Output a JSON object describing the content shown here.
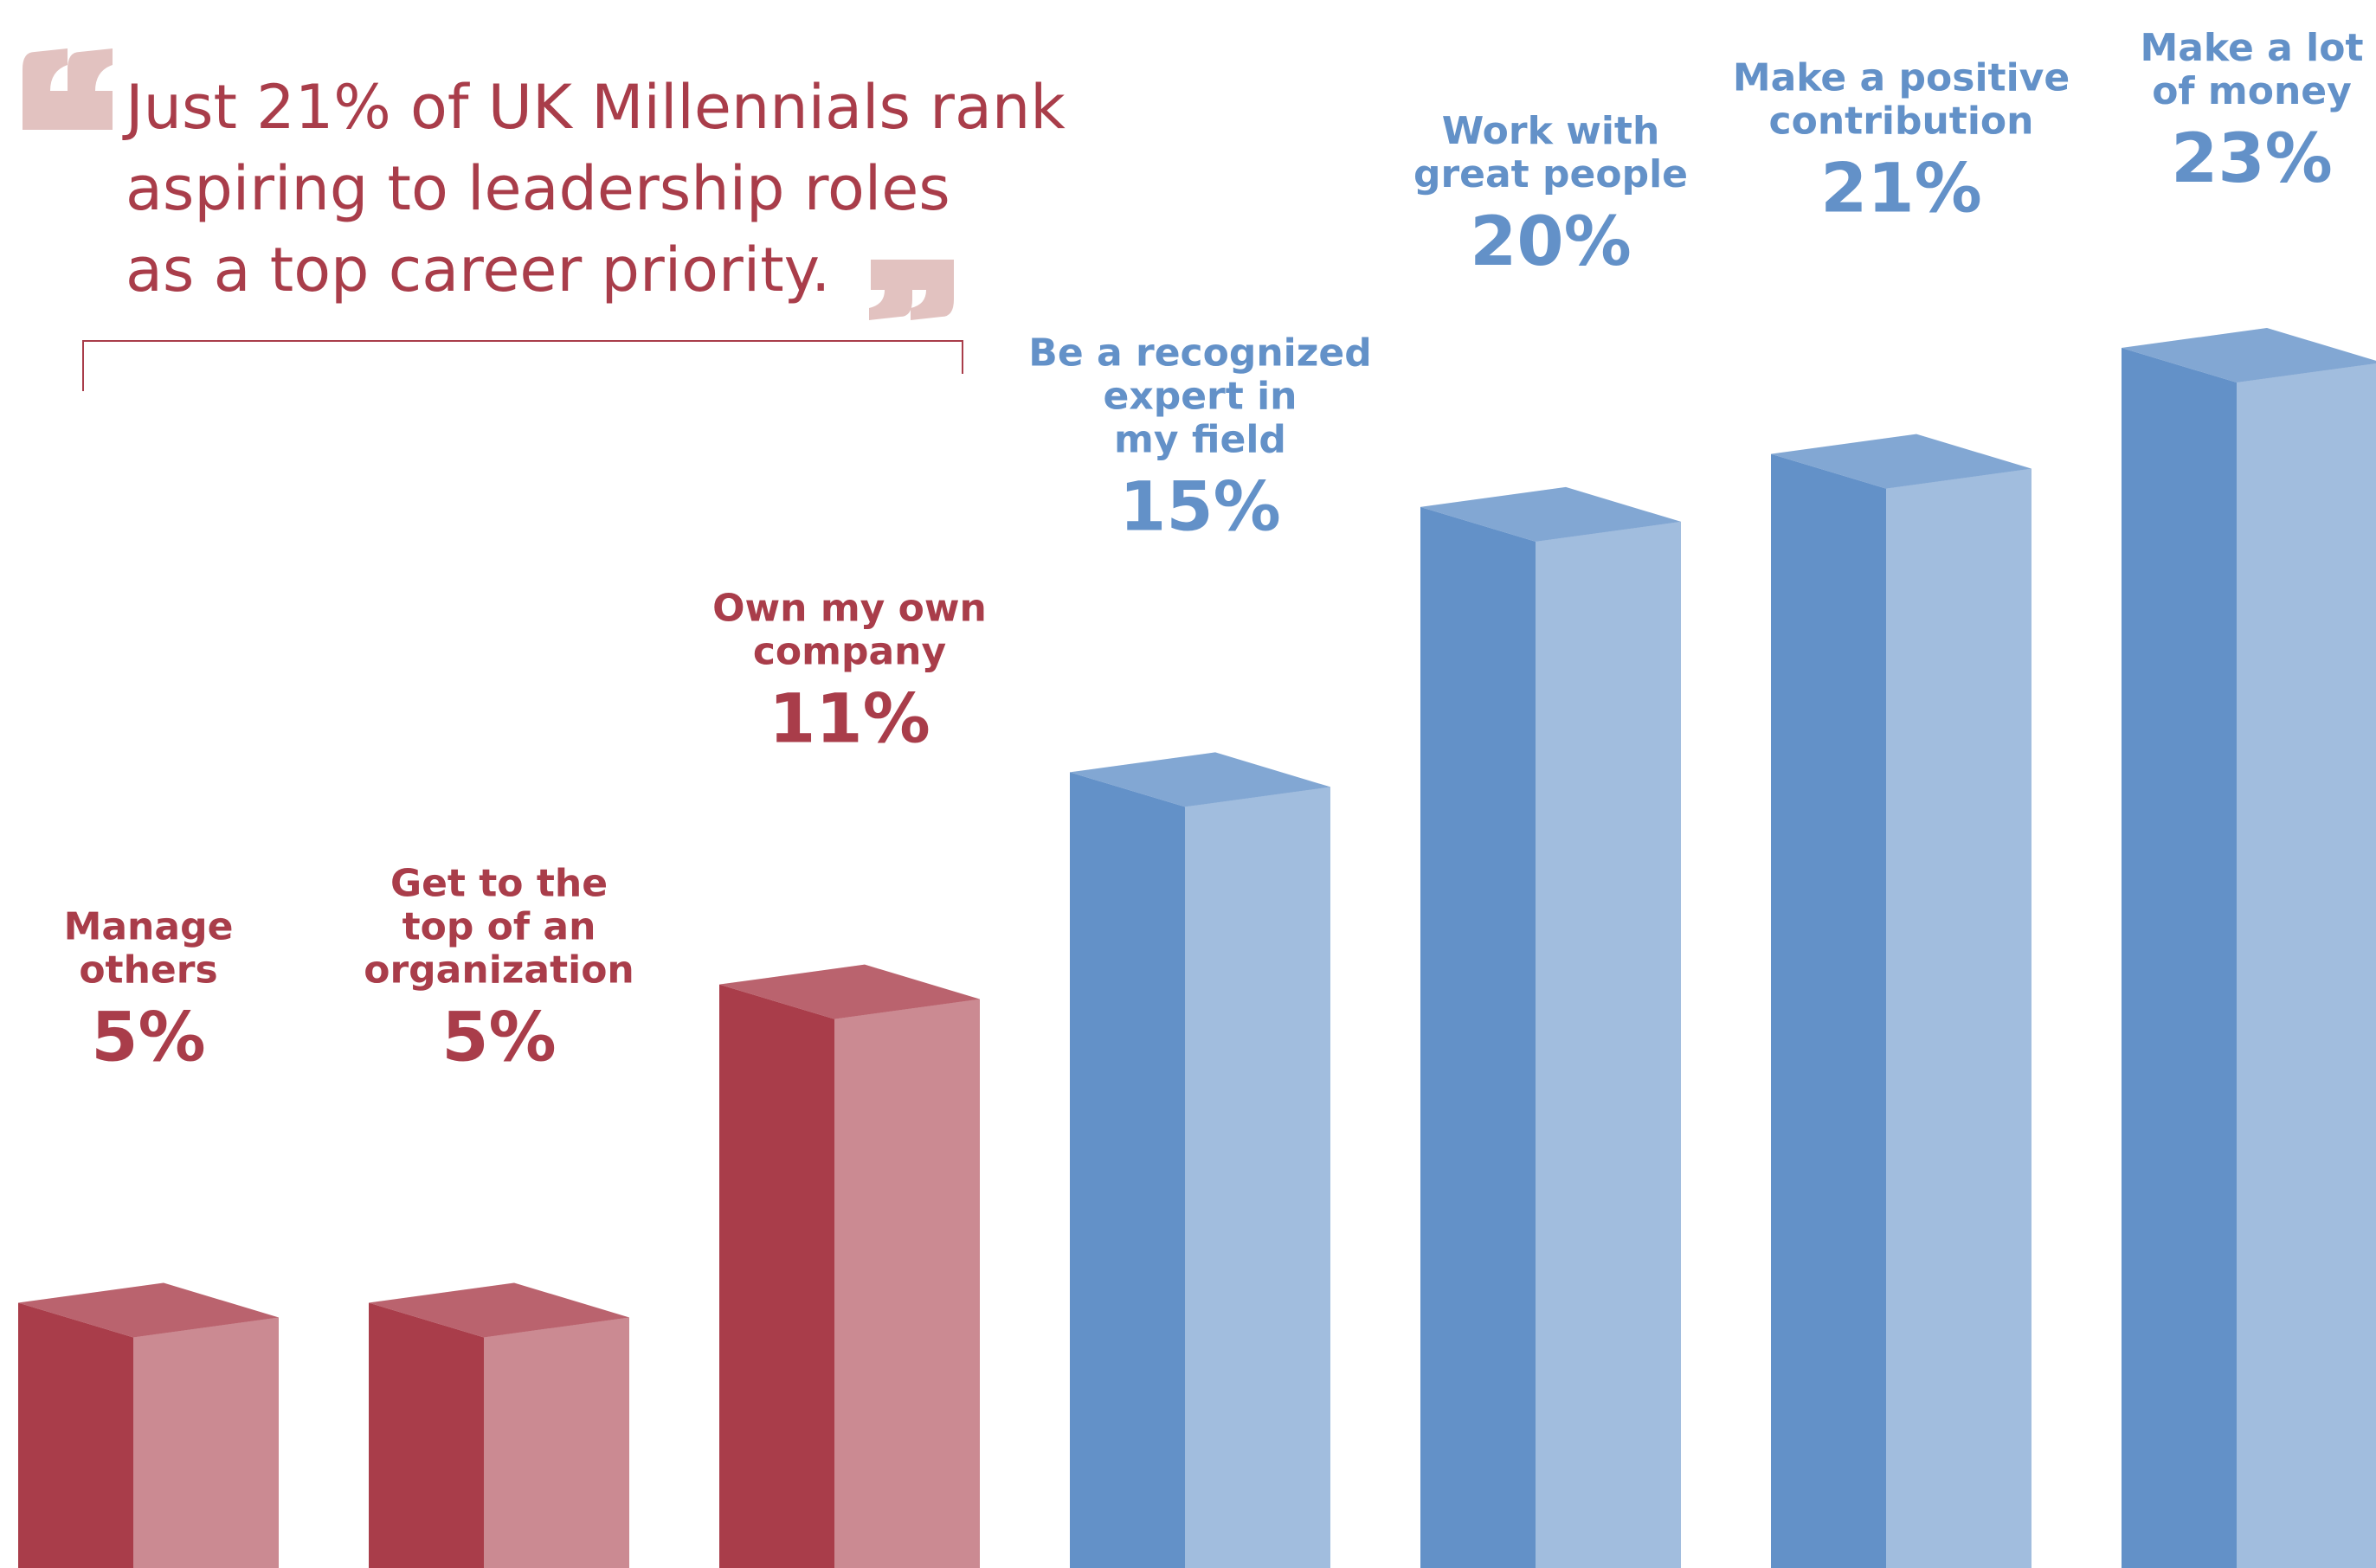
{
  "chart_data": {
    "type": "bar3d",
    "title_lines": [
      "Just 21% of UK Millennials rank",
      "aspiring to leadership roles",
      "as a top career priority."
    ],
    "categories": [
      [
        "Manage",
        "others"
      ],
      [
        "Get to the",
        "top of an",
        "organization"
      ],
      [
        "Own my own",
        "company"
      ],
      [
        "Be a recognized",
        "expert in",
        "my field"
      ],
      [
        "Work with",
        "great people"
      ],
      [
        "Make a positive",
        "contribution"
      ],
      [
        "Make a lot",
        "of money"
      ]
    ],
    "values": [
      5,
      5,
      11,
      15,
      20,
      21,
      23
    ],
    "value_labels": [
      "5%",
      "5%",
      "11%",
      "15%",
      "20%",
      "21%",
      "23%"
    ],
    "colors": [
      "#a93d4a",
      "#a93d4a",
      "#a93d4a",
      "#6391c8",
      "#6391c8",
      "#6391c8",
      "#6391c8"
    ]
  }
}
